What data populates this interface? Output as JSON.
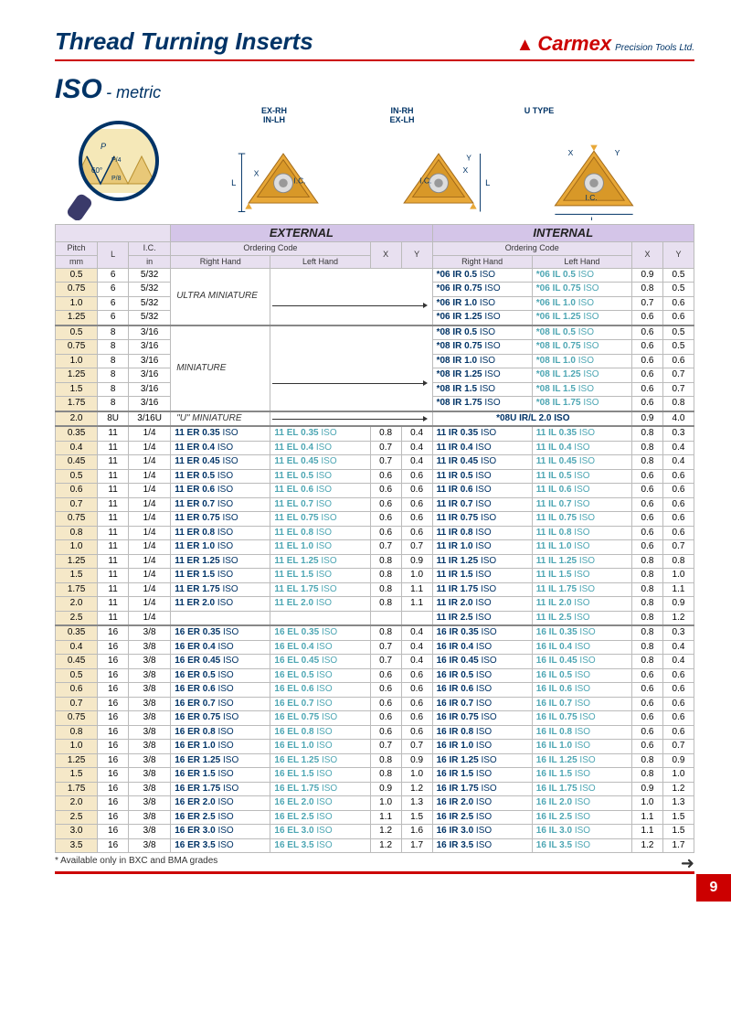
{
  "header": {
    "title": "Thread Turning Inserts",
    "brand": "Carmex",
    "brand_sub": "Precision Tools Ltd."
  },
  "iso": {
    "big": "ISO",
    "sub": "- metric"
  },
  "diagram_labels": {
    "exrh": "EX-RH",
    "inlh": "IN-LH",
    "inrh": "IN-RH",
    "exlh": "EX-LH",
    "utype": "U  TYPE",
    "ic": "I.C.",
    "x": "X",
    "y": "Y",
    "l": "L",
    "p": "P",
    "angle": "60°"
  },
  "tbl": {
    "ext_title": "EXTERNAL",
    "int_title": "INTERNAL",
    "oc": "Ordering Code",
    "pitch": "Pitch",
    "mm": "mm",
    "l": "L",
    "ic": "I.C.",
    "in": "in",
    "rh": "Right Hand",
    "lh": "Left Hand",
    "x": "X",
    "y": "Y",
    "ultra": "ULTRA MINIATURE",
    "mini": "MINIATURE",
    "umini": "\"U\" MINIATURE",
    "u_code": "*08U IR/L 2.0 ISO"
  },
  "rows_a": [
    {
      "p": "0.5",
      "l": "6",
      "ic": "5/32",
      "ir": "*06 IR 0.5",
      "il": "*06 IL 0.5",
      "x": "0.9",
      "y": "0.5"
    },
    {
      "p": "0.75",
      "l": "6",
      "ic": "5/32",
      "ir": "*06 IR 0.75",
      "il": "*06 IL 0.75",
      "x": "0.8",
      "y": "0.5"
    },
    {
      "p": "1.0",
      "l": "6",
      "ic": "5/32",
      "ir": "*06 IR 1.0",
      "il": "*06 IL 1.0",
      "x": "0.7",
      "y": "0.6"
    },
    {
      "p": "1.25",
      "l": "6",
      "ic": "5/32",
      "ir": "*06 IR 1.25",
      "il": "*06 IL 1.25",
      "x": "0.6",
      "y": "0.6"
    }
  ],
  "rows_b": [
    {
      "p": "0.5",
      "l": "8",
      "ic": "3/16",
      "ir": "*08 IR 0.5",
      "il": "*08 IL 0.5",
      "x": "0.6",
      "y": "0.5"
    },
    {
      "p": "0.75",
      "l": "8",
      "ic": "3/16",
      "ir": "*08 IR 0.75",
      "il": "*08 IL 0.75",
      "x": "0.6",
      "y": "0.5"
    },
    {
      "p": "1.0",
      "l": "8",
      "ic": "3/16",
      "ir": "*08 IR 1.0",
      "il": "*08 IL 1.0",
      "x": "0.6",
      "y": "0.6"
    },
    {
      "p": "1.25",
      "l": "8",
      "ic": "3/16",
      "ir": "*08 IR 1.25",
      "il": "*08 IL 1.25",
      "x": "0.6",
      "y": "0.7"
    },
    {
      "p": "1.5",
      "l": "8",
      "ic": "3/16",
      "ir": "*08 IR 1.5",
      "il": "*08 IL 1.5",
      "x": "0.6",
      "y": "0.7"
    },
    {
      "p": "1.75",
      "l": "8",
      "ic": "3/16",
      "ir": "*08 IR 1.75",
      "il": "*08 IL 1.75",
      "x": "0.6",
      "y": "0.8"
    }
  ],
  "row_u": {
    "p": "2.0",
    "l": "8U",
    "ic": "3/16U",
    "x": "0.9",
    "y": "4.0"
  },
  "rows_11": [
    {
      "p": "0.35",
      "er": "11 ER 0.35",
      "el": "11 EL 0.35",
      "ex": "0.8",
      "ey": "0.4",
      "ir": "11 IR 0.35",
      "il": "11 IL 0.35",
      "ix": "0.8",
      "iy": "0.3"
    },
    {
      "p": "0.4",
      "er": "11 ER 0.4",
      "el": "11 EL 0.4",
      "ex": "0.7",
      "ey": "0.4",
      "ir": "11 IR 0.4",
      "il": "11 IL 0.4",
      "ix": "0.8",
      "iy": "0.4"
    },
    {
      "p": "0.45",
      "er": "11 ER 0.45",
      "el": "11 EL 0.45",
      "ex": "0.7",
      "ey": "0.4",
      "ir": "11 IR 0.45",
      "il": "11 IL 0.45",
      "ix": "0.8",
      "iy": "0.4"
    },
    {
      "p": "0.5",
      "er": "11 ER 0.5",
      "el": "11 EL 0.5",
      "ex": "0.6",
      "ey": "0.6",
      "ir": "11 IR 0.5",
      "il": "11 IL 0.5",
      "ix": "0.6",
      "iy": "0.6"
    },
    {
      "p": "0.6",
      "er": "11 ER 0.6",
      "el": "11 EL 0.6",
      "ex": "0.6",
      "ey": "0.6",
      "ir": "11 IR 0.6",
      "il": "11 IL 0.6",
      "ix": "0.6",
      "iy": "0.6"
    },
    {
      "p": "0.7",
      "er": "11 ER 0.7",
      "el": "11 EL 0.7",
      "ex": "0.6",
      "ey": "0.6",
      "ir": "11 IR 0.7",
      "il": "11 IL 0.7",
      "ix": "0.6",
      "iy": "0.6"
    },
    {
      "p": "0.75",
      "er": "11 ER 0.75",
      "el": "11 EL 0.75",
      "ex": "0.6",
      "ey": "0.6",
      "ir": "11 IR 0.75",
      "il": "11 IL 0.75",
      "ix": "0.6",
      "iy": "0.6"
    },
    {
      "p": "0.8",
      "er": "11 ER 0.8",
      "el": "11 EL 0.8",
      "ex": "0.6",
      "ey": "0.6",
      "ir": "11 IR 0.8",
      "il": "11 IL 0.8",
      "ix": "0.6",
      "iy": "0.6"
    },
    {
      "p": "1.0",
      "er": "11 ER 1.0",
      "el": "11 EL 1.0",
      "ex": "0.7",
      "ey": "0.7",
      "ir": "11 IR 1.0",
      "il": "11 IL 1.0",
      "ix": "0.6",
      "iy": "0.7"
    },
    {
      "p": "1.25",
      "er": "11 ER 1.25",
      "el": "11 EL 1.25",
      "ex": "0.8",
      "ey": "0.9",
      "ir": "11 IR 1.25",
      "il": "11 IL 1.25",
      "ix": "0.8",
      "iy": "0.8"
    },
    {
      "p": "1.5",
      "er": "11 ER 1.5",
      "el": "11 EL 1.5",
      "ex": "0.8",
      "ey": "1.0",
      "ir": "11 IR 1.5",
      "il": "11 IL 1.5",
      "ix": "0.8",
      "iy": "1.0"
    },
    {
      "p": "1.75",
      "er": "11 ER 1.75",
      "el": "11 EL 1.75",
      "ex": "0.8",
      "ey": "1.1",
      "ir": "11 IR 1.75",
      "il": "11 IL 1.75",
      "ix": "0.8",
      "iy": "1.1"
    },
    {
      "p": "2.0",
      "er": "11 ER 2.0",
      "el": "11 EL 2.0",
      "ex": "0.8",
      "ey": "1.1",
      "ir": "11 IR 2.0",
      "il": "11 IL 2.0",
      "ix": "0.8",
      "iy": "0.9"
    },
    {
      "p": "2.5",
      "er": "",
      "el": "",
      "ex": "",
      "ey": "",
      "ir": "11 IR 2.5",
      "il": "11 IL 2.5",
      "ix": "0.8",
      "iy": "1.2"
    }
  ],
  "rows_16": [
    {
      "p": "0.35",
      "er": "16 ER 0.35",
      "el": "16 EL 0.35",
      "ex": "0.8",
      "ey": "0.4",
      "ir": "16 IR 0.35",
      "il": "16 IL 0.35",
      "ix": "0.8",
      "iy": "0.3"
    },
    {
      "p": "0.4",
      "er": "16 ER 0.4",
      "el": "16 EL 0.4",
      "ex": "0.7",
      "ey": "0.4",
      "ir": "16 IR 0.4",
      "il": "16 IL 0.4",
      "ix": "0.8",
      "iy": "0.4"
    },
    {
      "p": "0.45",
      "er": "16 ER 0.45",
      "el": "16 EL 0.45",
      "ex": "0.7",
      "ey": "0.4",
      "ir": "16 IR 0.45",
      "il": "16 IL 0.45",
      "ix": "0.8",
      "iy": "0.4"
    },
    {
      "p": "0.5",
      "er": "16 ER 0.5",
      "el": "16 EL 0.5",
      "ex": "0.6",
      "ey": "0.6",
      "ir": "16 IR 0.5",
      "il": "16 IL 0.5",
      "ix": "0.6",
      "iy": "0.6"
    },
    {
      "p": "0.6",
      "er": "16 ER 0.6",
      "el": "16 EL 0.6",
      "ex": "0.6",
      "ey": "0.6",
      "ir": "16 IR 0.6",
      "il": "16 IL 0.6",
      "ix": "0.6",
      "iy": "0.6"
    },
    {
      "p": "0.7",
      "er": "16 ER 0.7",
      "el": "16 EL 0.7",
      "ex": "0.6",
      "ey": "0.6",
      "ir": "16 IR 0.7",
      "il": "16 IL 0.7",
      "ix": "0.6",
      "iy": "0.6"
    },
    {
      "p": "0.75",
      "er": "16 ER 0.75",
      "el": "16 EL 0.75",
      "ex": "0.6",
      "ey": "0.6",
      "ir": "16 IR 0.75",
      "il": "16 IL 0.75",
      "ix": "0.6",
      "iy": "0.6"
    },
    {
      "p": "0.8",
      "er": "16 ER 0.8",
      "el": "16 EL 0.8",
      "ex": "0.6",
      "ey": "0.6",
      "ir": "16 IR 0.8",
      "il": "16 IL 0.8",
      "ix": "0.6",
      "iy": "0.6"
    },
    {
      "p": "1.0",
      "er": "16 ER 1.0",
      "el": "16 EL 1.0",
      "ex": "0.7",
      "ey": "0.7",
      "ir": "16 IR 1.0",
      "il": "16 IL 1.0",
      "ix": "0.6",
      "iy": "0.7"
    },
    {
      "p": "1.25",
      "er": "16 ER 1.25",
      "el": "16 EL 1.25",
      "ex": "0.8",
      "ey": "0.9",
      "ir": "16 IR 1.25",
      "il": "16 IL 1.25",
      "ix": "0.8",
      "iy": "0.9"
    },
    {
      "p": "1.5",
      "er": "16 ER 1.5",
      "el": "16 EL 1.5",
      "ex": "0.8",
      "ey": "1.0",
      "ir": "16 IR 1.5",
      "il": "16 IL 1.5",
      "ix": "0.8",
      "iy": "1.0"
    },
    {
      "p": "1.75",
      "er": "16 ER 1.75",
      "el": "16 EL 1.75",
      "ex": "0.9",
      "ey": "1.2",
      "ir": "16 IR 1.75",
      "il": "16 IL 1.75",
      "ix": "0.9",
      "iy": "1.2"
    },
    {
      "p": "2.0",
      "er": "16 ER 2.0",
      "el": "16 EL 2.0",
      "ex": "1.0",
      "ey": "1.3",
      "ir": "16 IR 2.0",
      "il": "16 IL 2.0",
      "ix": "1.0",
      "iy": "1.3"
    },
    {
      "p": "2.5",
      "er": "16 ER 2.5",
      "el": "16 EL 2.5",
      "ex": "1.1",
      "ey": "1.5",
      "ir": "16 IR 2.5",
      "il": "16 IL 2.5",
      "ix": "1.1",
      "iy": "1.5"
    },
    {
      "p": "3.0",
      "er": "16 ER 3.0",
      "el": "16 EL 3.0",
      "ex": "1.2",
      "ey": "1.6",
      "ir": "16 IR 3.0",
      "il": "16 IL 3.0",
      "ix": "1.1",
      "iy": "1.5"
    },
    {
      "p": "3.5",
      "er": "16 ER 3.5",
      "el": "16 EL 3.5",
      "ex": "1.2",
      "ey": "1.7",
      "ir": "16 IR 3.5",
      "il": "16 IL 3.5",
      "ix": "1.2",
      "iy": "1.7"
    }
  ],
  "footnote": "* Available only in BXC and BMA grades",
  "page_num": "9",
  "colors": {
    "brand_red": "#c00020",
    "deep_blue": "#003366",
    "teal": "#4da6b3",
    "header_purple": "#d4c5e8",
    "pitch_bg": "#f5e8c8",
    "side_tab": "#7b3f9e"
  }
}
